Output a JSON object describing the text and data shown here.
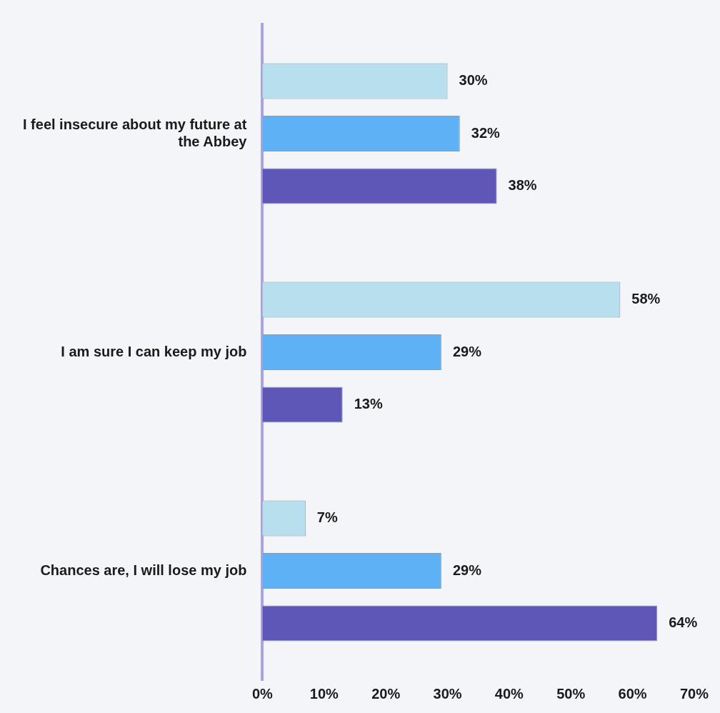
{
  "chart_data": {
    "type": "bar",
    "orientation": "horizontal",
    "categories": [
      "I feel insecure about my future at the Abbey",
      "I am sure I can keep my job",
      "Chances are, I will lose my job"
    ],
    "series": [
      {
        "color": "#b8dfee",
        "values": [
          30,
          58,
          7
        ],
        "value_labels": [
          "30%",
          "58%",
          "7%"
        ]
      },
      {
        "color": "#5db1f4",
        "values": [
          32,
          29,
          29
        ],
        "value_labels": [
          "32%",
          "29%",
          "29%"
        ]
      },
      {
        "color": "#5f57b8",
        "values": [
          38,
          13,
          64
        ],
        "value_labels": [
          "38%",
          "13%",
          "64%"
        ]
      }
    ],
    "xlim": [
      0,
      70
    ],
    "xticks": [
      {
        "value": 0,
        "label": "0%"
      },
      {
        "value": 10,
        "label": "10%"
      },
      {
        "value": 20,
        "label": "20%"
      },
      {
        "value": 30,
        "label": "30%"
      },
      {
        "value": 40,
        "label": "40%"
      },
      {
        "value": 50,
        "label": "50%"
      },
      {
        "value": 60,
        "label": "60%"
      },
      {
        "value": 70,
        "label": "70%"
      }
    ]
  }
}
